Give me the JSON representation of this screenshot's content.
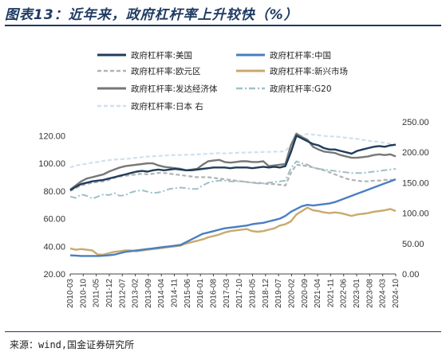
{
  "header": {
    "title": "图表13：近年来，政府杠杆率上升较快（%）"
  },
  "footer": {
    "source": "来源：wind,国金证券研究所"
  },
  "colors": {
    "title": "#1f3a63",
    "us": "#1f3d5c",
    "china": "#4a7fc1",
    "eurozone": "#b3b3b3",
    "emerging": "#c9aa6e",
    "developed": "#777777",
    "g20": "#9fc0c9",
    "japan": "#cfe0ef"
  },
  "chart_data": {
    "type": "line",
    "x": [
      "2010-03",
      "2010-06",
      "2010-09",
      "2010-12",
      "2011-03",
      "2011-06",
      "2011-09",
      "2011-12",
      "2012-03",
      "2012-06",
      "2012-09",
      "2012-12",
      "2013-03",
      "2013-06",
      "2013-09",
      "2013-12",
      "2014-03",
      "2014-06",
      "2014-09",
      "2014-12",
      "2015-03",
      "2015-06",
      "2015-09",
      "2015-12",
      "2016-03",
      "2016-06",
      "2016-09",
      "2016-12",
      "2017-03",
      "2017-06",
      "2017-09",
      "2017-12",
      "2018-03",
      "2018-06",
      "2018-09",
      "2018-12",
      "2019-03",
      "2019-06",
      "2019-09",
      "2019-12",
      "2020-03",
      "2020-06",
      "2020-09",
      "2020-12",
      "2021-03",
      "2021-06",
      "2021-09",
      "2021-12",
      "2022-03",
      "2022-06",
      "2022-09",
      "2022-12",
      "2023-03",
      "2023-06",
      "2023-09",
      "2023-12",
      "2024-03",
      "2024-06",
      "2024-09",
      "2024-12"
    ],
    "x_tick_labels": [
      "2010-03",
      "2010-10",
      "2011-05",
      "2011-12",
      "2012-07",
      "2013-02",
      "2013-09",
      "2014-04",
      "2014-11",
      "2015-06",
      "2016-01",
      "2016-08",
      "2017-03",
      "2017-10",
      "2018-05",
      "2018-12",
      "2019-07",
      "2020-02",
      "2020-09",
      "2021-04",
      "2021-11",
      "2022-06",
      "2023-01",
      "2023-08",
      "2024-03",
      "2024-10"
    ],
    "y_left": {
      "range": [
        20,
        130
      ],
      "ticks": [
        "20.00",
        "40.00",
        "60.00",
        "80.00",
        "100.00",
        "120.00"
      ]
    },
    "y_right": {
      "range": [
        0,
        250
      ],
      "ticks": [
        "0.00",
        "50.00",
        "100.00",
        "150.00",
        "200.00",
        "250.00"
      ]
    },
    "legend_position": "top",
    "series": [
      {
        "key": "us",
        "name": "政府杠杆率:美国",
        "axis": "left",
        "style": "solid",
        "color": "#1f3d5c",
        "values": [
          80.5,
          83.0,
          85.0,
          86.0,
          87.0,
          87.5,
          88.0,
          89.0,
          90.0,
          91.0,
          92.0,
          93.0,
          94.0,
          94.5,
          94.0,
          95.0,
          95.5,
          95.0,
          95.5,
          96.0,
          95.5,
          95.0,
          95.0,
          95.5,
          96.0,
          96.5,
          97.0,
          97.0,
          97.0,
          96.5,
          97.0,
          97.0,
          97.0,
          96.5,
          97.0,
          97.5,
          97.0,
          97.5,
          97.0,
          98.0,
          108.0,
          120.0,
          118.0,
          116.0,
          114.0,
          113.0,
          111.0,
          110.0,
          110.0,
          109.0,
          108.0,
          107.0,
          109.0,
          110.0,
          111.0,
          112.0,
          112.5,
          112.0,
          113.0,
          113.5
        ]
      },
      {
        "key": "china",
        "name": "政府杠杆率:中国",
        "axis": "left",
        "style": "solid",
        "color": "#4a7fc1",
        "values": [
          33.5,
          33.3,
          33.0,
          33.0,
          33.0,
          33.0,
          33.2,
          33.5,
          34.0,
          35.0,
          36.0,
          36.5,
          37.0,
          37.5,
          38.0,
          38.5,
          39.0,
          39.5,
          40.0,
          40.5,
          41.0,
          43.0,
          45.0,
          47.0,
          49.0,
          50.0,
          51.0,
          52.0,
          53.0,
          53.5,
          54.0,
          54.5,
          55.0,
          56.0,
          56.5,
          57.0,
          58.0,
          59.0,
          60.0,
          62.0,
          65.0,
          67.0,
          69.0,
          70.0,
          69.5,
          70.0,
          70.5,
          71.0,
          72.0,
          73.5,
          75.0,
          76.5,
          78.0,
          79.5,
          81.0,
          82.5,
          84.0,
          85.5,
          87.0,
          88.5
        ]
      },
      {
        "key": "eurozone",
        "name": "政府杠杆率:欧元区",
        "axis": "left",
        "style": "dashed",
        "color": "#b3b3b3",
        "values": [
          80.0,
          82.0,
          84.0,
          85.0,
          86.0,
          86.5,
          87.0,
          88.0,
          89.5,
          90.5,
          91.0,
          91.5,
          92.0,
          92.5,
          92.0,
          92.5,
          93.0,
          93.0,
          92.5,
          92.0,
          91.5,
          91.0,
          90.5,
          90.0,
          90.0,
          90.0,
          89.5,
          89.0,
          88.5,
          88.0,
          87.5,
          87.0,
          86.5,
          86.0,
          86.0,
          85.5,
          85.0,
          85.0,
          84.5,
          84.0,
          93.0,
          99.0,
          98.5,
          98.0,
          97.0,
          96.0,
          95.0,
          93.5,
          92.0,
          90.5,
          89.0,
          88.0,
          87.5,
          87.0,
          87.0,
          87.5,
          87.5,
          88.0,
          88.0,
          88.0
        ]
      },
      {
        "key": "emerging",
        "name": "政府杠杆率:新兴市场",
        "axis": "left",
        "style": "solid",
        "color": "#c9aa6e",
        "values": [
          38.5,
          37.5,
          38.0,
          37.5,
          37.0,
          34.0,
          34.0,
          35.0,
          36.0,
          36.5,
          37.0,
          37.0,
          36.5,
          37.0,
          37.5,
          38.0,
          38.5,
          39.0,
          39.5,
          40.0,
          40.5,
          42.0,
          43.0,
          44.0,
          45.0,
          46.5,
          47.5,
          48.5,
          50.0,
          51.0,
          51.5,
          52.0,
          52.5,
          51.0,
          50.5,
          51.0,
          52.0,
          53.0,
          55.0,
          56.0,
          58.0,
          63.0,
          65.5,
          68.0,
          66.0,
          65.5,
          64.5,
          64.0,
          64.5,
          64.0,
          63.0,
          62.0,
          63.0,
          63.5,
          64.0,
          65.0,
          65.5,
          66.0,
          67.0,
          65.5
        ]
      },
      {
        "key": "developed",
        "name": "政府杠杆率:发达经济体",
        "axis": "left",
        "style": "solid",
        "color": "#777777",
        "values": [
          81.0,
          84.0,
          87.0,
          89.0,
          90.0,
          91.0,
          92.0,
          94.0,
          95.5,
          97.0,
          98.0,
          98.5,
          99.0,
          99.5,
          100.0,
          100.0,
          98.5,
          97.5,
          97.0,
          96.5,
          96.0,
          95.0,
          95.5,
          96.0,
          99.0,
          101.5,
          102.0,
          102.5,
          101.0,
          100.5,
          101.0,
          101.5,
          101.5,
          101.0,
          101.0,
          101.5,
          98.0,
          98.5,
          99.0,
          99.5,
          113.0,
          121.5,
          119.0,
          117.0,
          112.0,
          110.0,
          108.5,
          108.0,
          107.5,
          106.0,
          105.0,
          104.0,
          104.0,
          104.5,
          105.0,
          106.0,
          106.5,
          106.0,
          106.5,
          105.0
        ]
      },
      {
        "key": "g20",
        "name": "政府杠杆率:G20",
        "axis": "left",
        "style": "dashdot",
        "color": "#9fc0c9",
        "values": [
          76.0,
          75.0,
          77.5,
          76.5,
          74.5,
          76.0,
          77.5,
          77.0,
          78.5,
          76.5,
          77.0,
          79.0,
          80.0,
          80.5,
          79.5,
          78.5,
          79.0,
          80.0,
          81.5,
          82.0,
          82.5,
          82.0,
          81.5,
          81.5,
          84.0,
          86.0,
          87.0,
          87.5,
          87.5,
          87.0,
          87.0,
          87.0,
          86.5,
          86.0,
          85.5,
          85.5,
          86.0,
          86.5,
          87.0,
          87.5,
          96.5,
          101.5,
          100.0,
          99.0,
          97.0,
          96.0,
          95.5,
          95.0,
          94.5,
          94.0,
          93.5,
          93.0,
          93.0,
          93.0,
          93.5,
          94.0,
          94.5,
          95.0,
          95.5,
          96.0
        ]
      },
      {
        "key": "japan",
        "name": "政府杠杆率:日本",
        "axis": "right",
        "style": "dashed",
        "color": "#cfe0ef",
        "values": [
          175.0,
          178.0,
          180.0,
          181.0,
          183.0,
          184.0,
          186.0,
          187.0,
          188.0,
          188.5,
          189.0,
          190.0,
          191.0,
          192.0,
          193.0,
          193.5,
          194.0,
          194.5,
          195.0,
          195.5,
          195.5,
          196.0,
          196.0,
          196.5,
          197.0,
          197.5,
          198.0,
          198.5,
          198.0,
          198.5,
          199.0,
          199.5,
          199.5,
          200.0,
          200.0,
          200.5,
          200.5,
          201.0,
          201.0,
          202.0,
          212.0,
          224.0,
          228.0,
          230.0,
          229.0,
          228.0,
          227.0,
          226.0,
          226.0,
          225.0,
          224.0,
          223.0,
          222.0,
          220.5,
          219.0,
          218.0,
          217.0,
          215.5,
          214.0,
          212.0
        ]
      }
    ],
    "legend": [
      {
        "name": "政府杠杆率:美国",
        "color": "#1f3d5c",
        "style": "solid"
      },
      {
        "name": "政府杠杆率:中国",
        "color": "#4a7fc1",
        "style": "solid"
      },
      {
        "name": "政府杠杆率:欧元区",
        "color": "#b3b3b3",
        "style": "dashed"
      },
      {
        "name": "政府杠杆率:新兴市场",
        "color": "#c9aa6e",
        "style": "solid"
      },
      {
        "name": "政府杠杆率:发达经济体",
        "color": "#777777",
        "style": "solid"
      },
      {
        "name": "政府杠杆率:G20",
        "color": "#9fc0c9",
        "style": "dashdot"
      },
      {
        "name": "政府杠杆率:日本 右",
        "color": "#cfe0ef",
        "style": "dashed"
      }
    ]
  }
}
